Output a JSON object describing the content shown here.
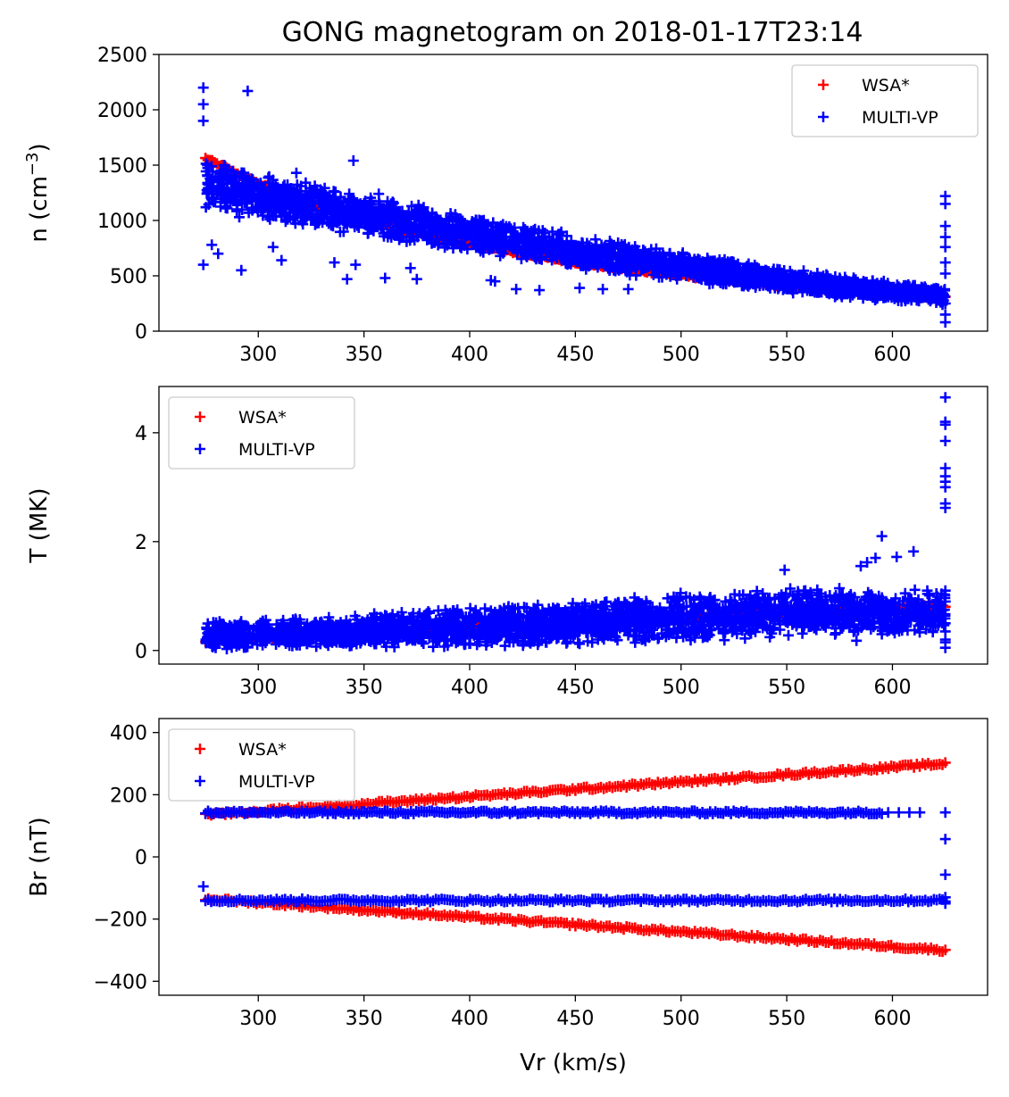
{
  "figure_title": "GONG magnetogram on 2018-01-17T23:14",
  "colors": {
    "wsa": "#ff0000",
    "multivp": "#0000ff"
  },
  "chart_data": [
    {
      "type": "scatter",
      "title": "GONG magnetogram on 2018-01-17T23:14",
      "xlabel": "Vr (km/s)",
      "ylabel": "n (cm",
      "ylabel_sup": "−3",
      "ylabel_close": ")",
      "xlim": [
        253,
        645
      ],
      "ylim": [
        0,
        2500
      ],
      "xticks": [
        "300",
        "350",
        "400",
        "450",
        "500",
        "550",
        "600"
      ],
      "yticks": [
        "0",
        "500",
        "1000",
        "1500",
        "2000",
        "2500"
      ],
      "legend": {
        "loc": "upper right",
        "entries": [
          "WSA*",
          "MULTI-VP"
        ]
      },
      "series": [
        {
          "name": "WSA*",
          "color": "#ff0000",
          "marker": "+",
          "x": [
            275,
            300,
            325,
            350,
            375,
            400,
            425,
            450,
            475,
            500,
            525,
            550,
            575,
            600,
            625
          ],
          "y": [
            1560,
            1330,
            1160,
            1010,
            890,
            790,
            700,
            625,
            560,
            505,
            455,
            410,
            370,
            335,
            300
          ]
        },
        {
          "name": "MULTI-VP",
          "color": "#0000ff",
          "marker": "+",
          "band": {
            "x": [
              275,
              300,
              350,
              400,
              450,
              500,
              550,
              600,
              625
            ],
            "low": [
              1100,
              1000,
              850,
              700,
              560,
              450,
              340,
              260,
              230
            ],
            "high": [
              1620,
              1440,
              1240,
              1060,
              880,
              720,
              570,
              450,
              400
            ]
          },
          "outliers": {
            "x": [
              274,
              274,
              274,
              274,
              295,
              318,
              345,
              357,
              278,
              281,
              288,
              291,
              292,
              299,
              307,
              311,
              336,
              342,
              346,
              343,
              360,
              372,
              375,
              410,
              412,
              422,
              433,
              452,
              463,
              475,
              625,
              625,
              625,
              625,
              625,
              625,
              625,
              625,
              625,
              625
            ],
            "y": [
              2200,
              2050,
              1900,
              600,
              2170,
              1430,
              1540,
              1240,
              780,
              700,
              1200,
              1030,
              550,
              1180,
              760,
              640,
              620,
              470,
              600,
              1240,
              480,
              570,
              470,
              460,
              450,
              380,
              370,
              390,
              380,
              380,
              1220,
              1150,
              950,
              850,
              760,
              620,
              520,
              250,
              150,
              80
            ]
          }
        }
      ]
    },
    {
      "type": "scatter",
      "title": "",
      "xlabel": "Vr (km/s)",
      "ylabel": "T (MK)",
      "xlim": [
        253,
        645
      ],
      "ylim": [
        -0.25,
        4.85
      ],
      "xticks": [
        "300",
        "350",
        "400",
        "450",
        "500",
        "550",
        "600"
      ],
      "yticks": [
        "0",
        "2",
        "4"
      ],
      "legend": {
        "loc": "upper left",
        "entries": [
          "WSA*",
          "MULTI-VP"
        ]
      },
      "series": [
        {
          "name": "WSA*",
          "color": "#ff0000",
          "marker": "+",
          "x": [
            275,
            625
          ],
          "y": [
            0.18,
            0.82
          ]
        },
        {
          "name": "MULTI-VP",
          "color": "#0000ff",
          "marker": "+",
          "band": {
            "x": [
              275,
              350,
              450,
              550,
              625
            ],
            "low": [
              0.0,
              0.02,
              0.08,
              0.2,
              0.3
            ],
            "high": [
              0.55,
              0.68,
              0.95,
              1.2,
              1.1
            ]
          },
          "outliers": {
            "x": [
              625,
              625,
              625,
              625,
              625,
              625,
              625,
              625,
              625,
              625,
              625,
              625,
              625,
              625,
              595,
              602,
              610,
              588,
              585,
              592,
              549,
              595,
              583,
              625,
              625,
              625
            ],
            "y": [
              4.65,
              4.2,
              4.15,
              3.85,
              3.35,
              3.2,
              3.1,
              3.0,
              2.7,
              2.62,
              1.1,
              0.9,
              0.5,
              0.2,
              2.1,
              1.72,
              1.82,
              1.62,
              1.55,
              1.7,
              1.48,
              0.3,
              0.18,
              0.05,
              0.15,
              0.35
            ]
          }
        }
      ]
    },
    {
      "type": "scatter",
      "title": "",
      "xlabel": "Vr (km/s)",
      "ylabel": "Br (nT)",
      "xlim": [
        253,
        645
      ],
      "ylim": [
        -445,
        445
      ],
      "xticks": [
        "300",
        "350",
        "400",
        "450",
        "500",
        "550",
        "600"
      ],
      "yticks": [
        "−400",
        "−200",
        "0",
        "200",
        "400"
      ],
      "legend": {
        "loc": "upper left",
        "entries": [
          "WSA*",
          "MULTI-VP"
        ]
      },
      "series": [
        {
          "name": "WSA*",
          "color": "#ff0000",
          "marker": "+",
          "lines": [
            {
              "x": [
                275,
                625
              ],
              "y": [
                135,
                300
              ]
            },
            {
              "x": [
                275,
                625
              ],
              "y": [
                -135,
                -300
              ]
            }
          ]
        },
        {
          "name": "MULTI-VP",
          "color": "#0000ff",
          "marker": "+",
          "lines": [
            {
              "x": [
                275,
                595
              ],
              "y": [
                143,
                143
              ]
            },
            {
              "x": [
                275,
                625
              ],
              "y": [
                -140,
                -140
              ]
            }
          ],
          "outliers": {
            "x": [
              598,
              603,
              608,
              613,
              625,
              625,
              625,
              625,
              625,
              274
            ],
            "y": [
              143,
              143,
              143,
              143,
              143,
              57,
              -57,
              -130,
              -150,
              -95
            ]
          }
        }
      ]
    }
  ]
}
